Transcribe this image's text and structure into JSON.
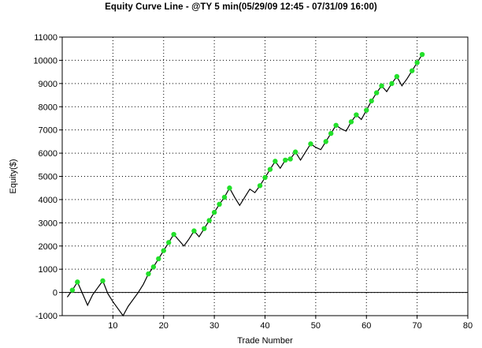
{
  "chart_data": {
    "type": "line",
    "title": "Equity Curve Line - @TY 5 min(05/29/09 12:45 - 07/31/09 16:00)",
    "xlabel": "Trade Number",
    "ylabel": "Equity($)",
    "xlim": [
      0,
      80
    ],
    "ylim": [
      -1000,
      11000
    ],
    "x_ticks": [
      10,
      20,
      30,
      40,
      50,
      60,
      70,
      80
    ],
    "y_ticks": [
      -1000,
      0,
      1000,
      2000,
      3000,
      4000,
      5000,
      6000,
      7000,
      8000,
      9000,
      10000,
      11000
    ],
    "grid": true,
    "legend": "none",
    "line_color": "#000000",
    "marker_color": "#22e02a",
    "series": [
      {
        "x": [
          1,
          2,
          3,
          4,
          5,
          6,
          7,
          8,
          9,
          10,
          11,
          12,
          13,
          14,
          15,
          16,
          17,
          18,
          19,
          20,
          21,
          22,
          23,
          24,
          25,
          26,
          27,
          28,
          29,
          30,
          31,
          32,
          33,
          34,
          35,
          36,
          37,
          38,
          39,
          40,
          41,
          42,
          43,
          44,
          45,
          46,
          47,
          48,
          49,
          50,
          51,
          52,
          53,
          54,
          55,
          56,
          57,
          58,
          59,
          60,
          61,
          62,
          63,
          64,
          65,
          66,
          67,
          68,
          69,
          70,
          71
        ],
        "y": [
          -200,
          100,
          450,
          -50,
          -550,
          -100,
          200,
          500,
          -50,
          -400,
          -700,
          -1000,
          -600,
          -300,
          0,
          350,
          800,
          1100,
          1450,
          1800,
          2150,
          2500,
          2250,
          2000,
          2300,
          2650,
          2400,
          2750,
          3100,
          3450,
          3800,
          4100,
          4500,
          4100,
          3750,
          4100,
          4450,
          4300,
          4600,
          4950,
          5300,
          5650,
          5350,
          5700,
          5750,
          6050,
          5700,
          6050,
          6400,
          6250,
          6150,
          6500,
          6850,
          7200,
          7050,
          6950,
          7350,
          7650,
          7450,
          7850,
          8250,
          8600,
          8900,
          8650,
          9000,
          9300,
          8900,
          9200,
          9550,
          9900,
          10250
        ],
        "markers": [
          false,
          true,
          true,
          false,
          false,
          false,
          false,
          true,
          false,
          false,
          false,
          false,
          false,
          false,
          false,
          false,
          true,
          true,
          true,
          true,
          true,
          true,
          false,
          false,
          false,
          true,
          false,
          true,
          true,
          true,
          true,
          true,
          true,
          false,
          false,
          false,
          false,
          false,
          true,
          true,
          true,
          true,
          false,
          true,
          true,
          true,
          false,
          false,
          true,
          false,
          false,
          true,
          true,
          true,
          false,
          false,
          true,
          true,
          false,
          true,
          true,
          true,
          true,
          false,
          true,
          true,
          false,
          false,
          true,
          true,
          true
        ]
      }
    ]
  }
}
